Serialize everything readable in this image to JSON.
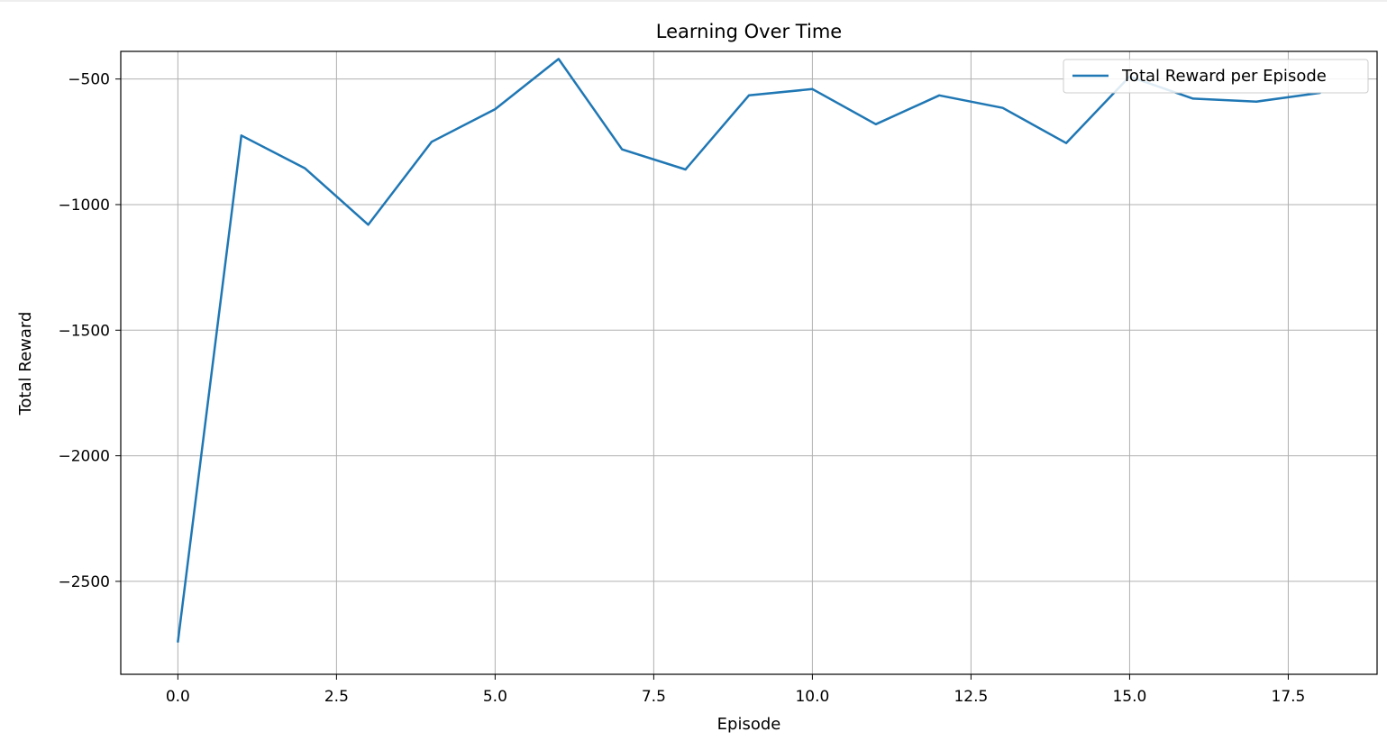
{
  "chart_data": {
    "type": "line",
    "title": "Learning Over Time",
    "xlabel": "Episode",
    "ylabel": "Total Reward",
    "xlim": [
      -0.9,
      18.9
    ],
    "ylim": [
      -2870,
      -390
    ],
    "x_ticks": [
      0.0,
      2.5,
      5.0,
      7.5,
      10.0,
      12.5,
      15.0,
      17.5
    ],
    "x_tick_labels": [
      "0.0",
      "2.5",
      "5.0",
      "7.5",
      "10.0",
      "12.5",
      "15.0",
      "17.5"
    ],
    "y_ticks": [
      -2500,
      -2000,
      -1500,
      -1000,
      -500
    ],
    "y_tick_labels": [
      "−2500",
      "−2000",
      "−1500",
      "−1000",
      "−500"
    ],
    "grid": true,
    "legend_position": "top-right",
    "series": [
      {
        "name": "Total Reward per Episode",
        "color": "#1f77b4",
        "x": [
          0,
          1,
          2,
          3,
          4,
          5,
          6,
          7,
          8,
          9,
          10,
          11,
          12,
          13,
          14,
          15,
          16,
          17,
          18
        ],
        "y": [
          -2740,
          -725,
          -855,
          -1080,
          -750,
          -620,
          -420,
          -780,
          -860,
          -565,
          -540,
          -680,
          -565,
          -615,
          -755,
          -490,
          -578,
          -590,
          -555
        ]
      }
    ]
  }
}
